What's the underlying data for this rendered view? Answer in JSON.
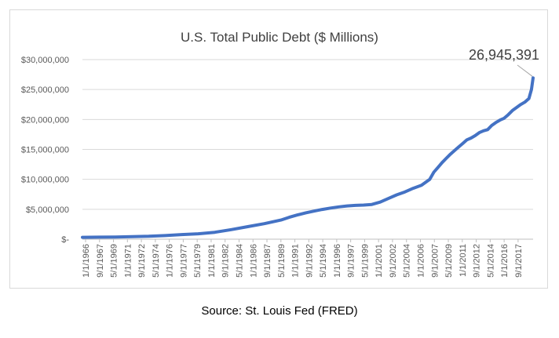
{
  "chart_data": {
    "type": "line",
    "title": "U.S. Total Public Debt ($ Millions)",
    "xlabel": "",
    "ylabel": "",
    "ylim": [
      0,
      30000000
    ],
    "yticks": [
      {
        "value": 0,
        "label": "$-"
      },
      {
        "value": 5000000,
        "label": "$5,000,000"
      },
      {
        "value": 10000000,
        "label": "$10,000,000"
      },
      {
        "value": 15000000,
        "label": "$15,000,000"
      },
      {
        "value": 20000000,
        "label": "$20,000,000"
      },
      {
        "value": 25000000,
        "label": "$25,000,000"
      },
      {
        "value": 30000000,
        "label": "$30,000,000"
      }
    ],
    "xticks": [
      "1/1/1966",
      "9/1/1967",
      "5/1/1969",
      "1/1/1971",
      "9/1/1972",
      "5/1/1974",
      "1/1/1976",
      "9/1/1977",
      "5/1/1979",
      "1/1/1981",
      "9/1/1982",
      "5/1/1984",
      "1/1/1986",
      "9/1/1987",
      "5/1/1989",
      "1/1/1991",
      "9/1/1992",
      "5/1/1994",
      "1/1/1996",
      "9/1/1997",
      "5/1/1999",
      "1/1/2001",
      "9/1/2002",
      "5/1/2004",
      "1/1/2006",
      "9/1/2007",
      "5/1/2009",
      "1/1/2011",
      "9/1/2012",
      "5/1/2014",
      "1/1/2016",
      "9/1/2017"
    ],
    "grid": true,
    "legend": "none",
    "line_color": "#4472c4",
    "series": [
      {
        "x": [
          1966,
          1968,
          1970,
          1972,
          1974,
          1976,
          1978,
          1980,
          1982,
          1984,
          1986,
          1988,
          1990,
          1991,
          1992,
          1993,
          1994,
          1995,
          1996,
          1997,
          1998,
          1999,
          2000,
          2001,
          2002,
          2003,
          2004,
          2005,
          2006,
          2007,
          2008,
          2008.5,
          2009,
          2009.5,
          2010,
          2010.5,
          2011,
          2011.5,
          2012,
          2012.5,
          2013,
          2013.5,
          2014,
          2014.5,
          2015,
          2015.5,
          2016,
          2016.5,
          2017,
          2017.5,
          2018,
          2018.5,
          2019,
          2019.5,
          2020,
          2020.3,
          2020.5
        ],
        "values": [
          320000,
          340000,
          370000,
          430000,
          480000,
          600000,
          770000,
          910000,
          1150000,
          1600000,
          2100000,
          2600000,
          3200000,
          3650000,
          4050000,
          4400000,
          4690000,
          4970000,
          5200000,
          5400000,
          5550000,
          5650000,
          5700000,
          5800000,
          6200000,
          6800000,
          7400000,
          7900000,
          8500000,
          9000000,
          10000000,
          11200000,
          12000000,
          12800000,
          13500000,
          14200000,
          14800000,
          15400000,
          16000000,
          16600000,
          16900000,
          17300000,
          17800000,
          18100000,
          18300000,
          19000000,
          19500000,
          19900000,
          20200000,
          20800000,
          21500000,
          22000000,
          22500000,
          22900000,
          23500000,
          25000000,
          26945391
        ]
      }
    ],
    "annotation": {
      "text": "26,945,391",
      "x": 2020.5,
      "value": 26945391
    }
  },
  "caption": "Source: St. Louis Fed (FRED)"
}
